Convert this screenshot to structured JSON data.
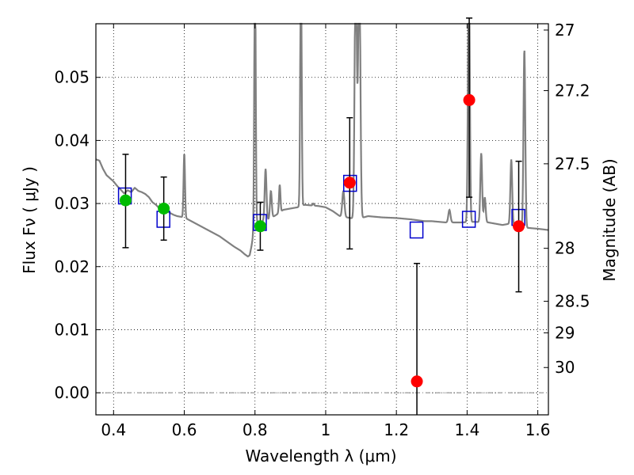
{
  "chart_data": {
    "type": "scatter",
    "xlabel": "Wavelength  λ (μm)",
    "ylabel": "Flux  Fν  ( μJy )",
    "y2label": "Magnitude (AB)",
    "xlim": [
      0.35,
      1.63
    ],
    "ylim": [
      -0.0035,
      0.0585
    ],
    "x_ticks": [
      0.4,
      0.6,
      0.8,
      1.0,
      1.2,
      1.4,
      1.6
    ],
    "x_tick_labels": [
      "0.4",
      "0.6",
      "0.8",
      "1",
      "1.2",
      "1.4",
      "1.6"
    ],
    "y_ticks": [
      0.0,
      0.01,
      0.02,
      0.03,
      0.04,
      0.05
    ],
    "y_tick_labels": [
      "0.00",
      "0.01",
      "0.02",
      "0.03",
      "0.04",
      "0.05"
    ],
    "y2_ticks": [
      {
        "label": "27",
        "flux": 0.0575
      },
      {
        "label": "27.2",
        "flux": 0.0479
      },
      {
        "label": "27.5",
        "flux": 0.0363
      },
      {
        "label": "28",
        "flux": 0.0229
      },
      {
        "label": "28.5",
        "flux": 0.0145
      },
      {
        "label": "29",
        "flux": 0.0095
      },
      {
        "label": "30",
        "flux": 0.004
      }
    ],
    "grid": true,
    "grid_style": "dotted",
    "colors": {
      "spectrum": "#808080",
      "model_box": "#0000cc",
      "obs_green": "#00bb00",
      "obs_red": "#ff0000",
      "errorbar": "#000000",
      "zero_line": "#808080"
    },
    "spectrum": {
      "name": "",
      "continuum": [
        [
          0.35,
          0.037
        ],
        [
          0.36,
          0.0368
        ],
        [
          0.37,
          0.0355
        ],
        [
          0.38,
          0.0345
        ],
        [
          0.39,
          0.034
        ],
        [
          0.4,
          0.0335
        ],
        [
          0.41,
          0.0328
        ],
        [
          0.42,
          0.0322
        ],
        [
          0.43,
          0.0316
        ],
        [
          0.44,
          0.0321
        ],
        [
          0.45,
          0.0318
        ],
        [
          0.46,
          0.0325
        ],
        [
          0.47,
          0.032
        ],
        [
          0.48,
          0.0318
        ],
        [
          0.49,
          0.0315
        ],
        [
          0.5,
          0.031
        ],
        [
          0.51,
          0.0302
        ],
        [
          0.52,
          0.0298
        ],
        [
          0.53,
          0.0292
        ],
        [
          0.54,
          0.029
        ],
        [
          0.55,
          0.0288
        ],
        [
          0.56,
          0.0285
        ],
        [
          0.57,
          0.0282
        ],
        [
          0.58,
          0.028
        ],
        [
          0.59,
          0.0279
        ],
        [
          0.6,
          0.0278
        ],
        [
          0.62,
          0.0272
        ],
        [
          0.64,
          0.0266
        ],
        [
          0.66,
          0.026
        ],
        [
          0.68,
          0.0254
        ],
        [
          0.7,
          0.0248
        ],
        [
          0.72,
          0.024
        ],
        [
          0.74,
          0.0232
        ],
        [
          0.76,
          0.0225
        ],
        [
          0.77,
          0.022
        ],
        [
          0.78,
          0.0216
        ],
        [
          0.785,
          0.0218
        ],
        [
          0.79,
          0.0232
        ],
        [
          0.8,
          0.0268
        ],
        [
          0.82,
          0.0272
        ],
        [
          0.84,
          0.0275
        ],
        [
          0.86,
          0.0282
        ],
        [
          0.88,
          0.029
        ],
        [
          0.9,
          0.0292
        ],
        [
          0.92,
          0.0294
        ],
        [
          0.94,
          0.0298
        ],
        [
          0.96,
          0.0297
        ],
        [
          0.98,
          0.0296
        ],
        [
          1.0,
          0.0294
        ],
        [
          1.02,
          0.0288
        ],
        [
          1.04,
          0.028
        ],
        [
          1.08,
          0.0276
        ],
        [
          1.1,
          0.0277
        ],
        [
          1.12,
          0.028
        ],
        [
          1.16,
          0.0278
        ],
        [
          1.2,
          0.0277
        ],
        [
          1.24,
          0.0275
        ],
        [
          1.28,
          0.0272
        ],
        [
          1.3,
          0.0272
        ],
        [
          1.34,
          0.027
        ],
        [
          1.38,
          0.027
        ],
        [
          1.42,
          0.0271
        ],
        [
          1.46,
          0.027
        ],
        [
          1.5,
          0.0266
        ],
        [
          1.52,
          0.0268
        ],
        [
          1.56,
          0.0262
        ],
        [
          1.6,
          0.026
        ],
        [
          1.63,
          0.0258
        ]
      ],
      "features": [
        {
          "center": 0.6,
          "width": 0.004,
          "peak": 0.038
        },
        {
          "center": 0.8,
          "width": 0.004,
          "peak": 0.07
        },
        {
          "center": 0.83,
          "width": 0.005,
          "peak": 0.0355
        },
        {
          "center": 0.845,
          "width": 0.005,
          "peak": 0.032
        },
        {
          "center": 0.87,
          "width": 0.004,
          "peak": 0.033
        },
        {
          "center": 0.93,
          "width": 0.004,
          "peak": 0.07
        },
        {
          "center": 0.965,
          "width": 0.004,
          "peak": 0.03
        },
        {
          "center": 1.05,
          "width": 0.006,
          "peak": 0.032
        },
        {
          "center": 1.085,
          "width": 0.006,
          "peak": 0.07
        },
        {
          "center": 1.095,
          "width": 0.006,
          "peak": 0.07
        },
        {
          "center": 1.35,
          "width": 0.006,
          "peak": 0.029
        },
        {
          "center": 1.405,
          "width": 0.005,
          "peak": 0.07
        },
        {
          "center": 1.44,
          "width": 0.005,
          "peak": 0.038
        },
        {
          "center": 1.45,
          "width": 0.005,
          "peak": 0.031
        },
        {
          "center": 1.525,
          "width": 0.005,
          "peak": 0.037
        },
        {
          "center": 1.562,
          "width": 0.005,
          "peak": 0.0545
        }
      ]
    },
    "model_points": [
      {
        "x": 0.432,
        "y": 0.0312
      },
      {
        "x": 0.541,
        "y": 0.0275
      },
      {
        "x": 0.814,
        "y": 0.027
      },
      {
        "x": 1.069,
        "y": 0.0332
      },
      {
        "x": 1.257,
        "y": 0.0258
      },
      {
        "x": 1.405,
        "y": 0.0275
      },
      {
        "x": 1.545,
        "y": 0.0278
      }
    ],
    "observed_points": [
      {
        "x": 0.434,
        "y": 0.0305,
        "yerr_low": 0.0075,
        "yerr_high": 0.0073,
        "color": "green"
      },
      {
        "x": 0.542,
        "y": 0.0292,
        "yerr_low": 0.005,
        "yerr_high": 0.005,
        "color": "green"
      },
      {
        "x": 0.815,
        "y": 0.0264,
        "yerr_low": 0.0038,
        "yerr_high": 0.0038,
        "color": "green"
      },
      {
        "x": 1.068,
        "y": 0.0333,
        "yerr_low": 0.0105,
        "yerr_high": 0.0103,
        "color": "red"
      },
      {
        "x": 1.258,
        "y": 0.0018,
        "yerr_low": 0.006,
        "yerr_high": 0.0187,
        "color": "red"
      },
      {
        "x": 1.406,
        "y": 0.0464,
        "yerr_low": 0.0154,
        "yerr_high": 0.013,
        "color": "red"
      },
      {
        "x": 1.546,
        "y": 0.0264,
        "yerr_low": 0.0104,
        "yerr_high": 0.0103,
        "color": "red"
      }
    ]
  }
}
